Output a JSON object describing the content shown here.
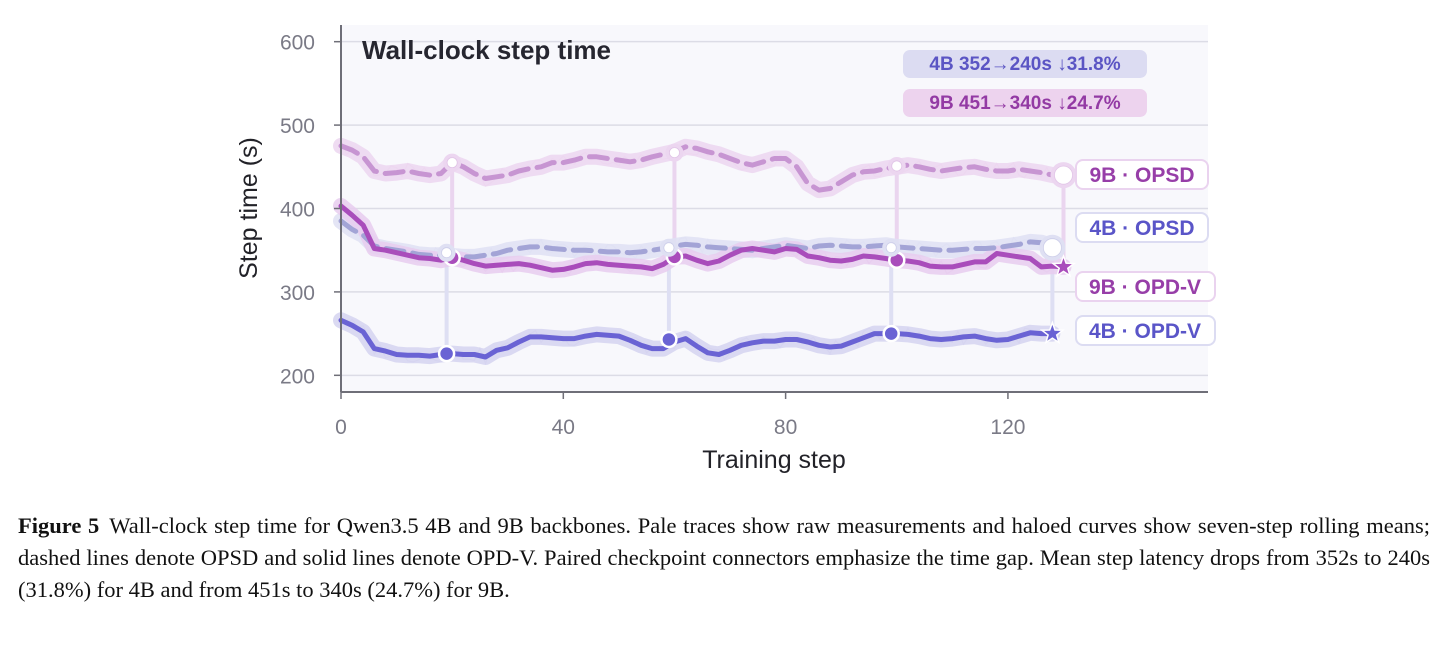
{
  "chart_data": {
    "type": "line",
    "title": "Wall-clock step time",
    "xlabel": "Training step",
    "ylabel": "Step time (s)",
    "xlim": [
      0,
      156
    ],
    "ylim": [
      180,
      620
    ],
    "xticks": [
      0,
      40,
      80,
      120
    ],
    "yticks": [
      200,
      300,
      400,
      500,
      600
    ],
    "grid": "horizontal",
    "annotations": [
      {
        "text": "4B  352→240s  ↓31.8%",
        "color": "#5b55c4",
        "bg": "#dcdcf2"
      },
      {
        "text": "9B  451→340s  ↓24.7%",
        "color": "#933aa4",
        "bg": "#edd3ee"
      }
    ],
    "series": [
      {
        "name": "9B · OPSD",
        "style": "dashed",
        "color": "#c795d2",
        "halo": "#ecd6f0",
        "marker": "open-circle",
        "x": [
          0,
          2,
          4,
          6,
          8,
          10,
          12,
          14,
          16,
          18,
          20,
          22,
          24,
          26,
          28,
          30,
          32,
          34,
          36,
          38,
          40,
          42,
          44,
          46,
          48,
          50,
          52,
          54,
          56,
          58,
          60,
          62,
          64,
          66,
          68,
          70,
          72,
          74,
          76,
          78,
          80,
          82,
          84,
          86,
          88,
          90,
          92,
          94,
          96,
          98,
          100,
          102,
          104,
          106,
          108,
          110,
          112,
          114,
          116,
          118,
          120,
          122,
          124,
          126,
          128,
          130
        ],
        "values": [
          475,
          470,
          462,
          445,
          442,
          443,
          445,
          442,
          440,
          442,
          455,
          450,
          442,
          436,
          438,
          440,
          445,
          448,
          450,
          455,
          455,
          458,
          462,
          462,
          460,
          458,
          456,
          458,
          462,
          465,
          468,
          474,
          472,
          468,
          465,
          460,
          455,
          452,
          456,
          460,
          460,
          450,
          430,
          422,
          424,
          432,
          440,
          444,
          445,
          448,
          450,
          452,
          450,
          447,
          445,
          447,
          449,
          450,
          447,
          445,
          445,
          447,
          445,
          443,
          440,
          440
        ]
      },
      {
        "name": "4B · OPSD",
        "style": "dashed",
        "color": "#a3a4d6",
        "halo": "#dfe0f3",
        "marker": "open-circle",
        "x": [
          0,
          2,
          4,
          6,
          8,
          10,
          12,
          14,
          16,
          18,
          20,
          22,
          24,
          26,
          28,
          30,
          32,
          34,
          36,
          38,
          40,
          42,
          44,
          46,
          48,
          50,
          52,
          54,
          56,
          58,
          60,
          62,
          64,
          66,
          68,
          70,
          72,
          74,
          76,
          78,
          80,
          82,
          84,
          86,
          88,
          90,
          92,
          94,
          96,
          98,
          100,
          102,
          104,
          106,
          108,
          110,
          112,
          114,
          116,
          118,
          120,
          122,
          124,
          126,
          128
        ],
        "values": [
          385,
          375,
          368,
          355,
          352,
          350,
          348,
          345,
          344,
          344,
          343,
          342,
          342,
          344,
          346,
          350,
          352,
          354,
          354,
          352,
          351,
          350,
          350,
          349,
          348,
          348,
          347,
          348,
          350,
          352,
          355,
          357,
          356,
          354,
          353,
          352,
          351,
          350,
          352,
          354,
          356,
          354,
          352,
          355,
          356,
          355,
          354,
          354,
          355,
          356,
          354,
          353,
          352,
          351,
          350,
          350,
          351,
          352,
          352,
          353,
          355,
          357,
          360,
          359,
          355
        ]
      },
      {
        "name": "9B · OPD-V",
        "style": "solid",
        "color": "#a94dbb",
        "halo": "#e8cdee",
        "marker": "filled-circle",
        "x": [
          0,
          2,
          4,
          6,
          8,
          10,
          12,
          14,
          16,
          18,
          20,
          22,
          24,
          26,
          28,
          30,
          32,
          34,
          36,
          38,
          40,
          42,
          44,
          46,
          48,
          50,
          52,
          54,
          56,
          58,
          60,
          62,
          64,
          66,
          68,
          70,
          72,
          74,
          76,
          78,
          80,
          82,
          84,
          86,
          88,
          90,
          92,
          94,
          96,
          98,
          100,
          102,
          104,
          106,
          108,
          110,
          112,
          114,
          116,
          118,
          120,
          122,
          124,
          126,
          128,
          130
        ],
        "values": [
          403,
          392,
          380,
          352,
          350,
          347,
          344,
          341,
          340,
          338,
          341,
          338,
          334,
          331,
          332,
          333,
          334,
          332,
          329,
          326,
          327,
          330,
          334,
          335,
          333,
          332,
          331,
          330,
          328,
          333,
          342,
          343,
          338,
          334,
          337,
          344,
          350,
          352,
          350,
          348,
          352,
          351,
          343,
          341,
          338,
          337,
          339,
          343,
          342,
          340,
          338,
          337,
          335,
          331,
          330,
          330,
          333,
          336,
          336,
          346,
          344,
          342,
          340,
          330,
          331,
          330
        ]
      },
      {
        "name": "4B · OPD-V",
        "style": "solid",
        "color": "#6a63d4",
        "halo": "#d5d4f0",
        "marker": "filled-circle",
        "x": [
          0,
          2,
          4,
          6,
          8,
          10,
          12,
          14,
          16,
          18,
          20,
          22,
          24,
          26,
          28,
          30,
          32,
          34,
          36,
          38,
          40,
          42,
          44,
          46,
          48,
          50,
          52,
          54,
          56,
          58,
          60,
          62,
          64,
          66,
          68,
          70,
          72,
          74,
          76,
          78,
          80,
          82,
          84,
          86,
          88,
          90,
          92,
          94,
          96,
          98,
          100,
          102,
          104,
          106,
          108,
          110,
          112,
          114,
          116,
          118,
          120,
          122,
          124,
          126,
          128
        ],
        "values": [
          266,
          260,
          252,
          232,
          229,
          225,
          224,
          224,
          223,
          225,
          226,
          225,
          225,
          222,
          230,
          233,
          240,
          246,
          246,
          245,
          244,
          244,
          247,
          249,
          248,
          247,
          242,
          236,
          232,
          232,
          240,
          244,
          235,
          227,
          225,
          230,
          236,
          239,
          241,
          241,
          243,
          243,
          240,
          236,
          234,
          235,
          240,
          245,
          250,
          250,
          250,
          249,
          247,
          244,
          243,
          244,
          246,
          247,
          244,
          242,
          243,
          247,
          251,
          250,
          250
        ]
      }
    ],
    "checkpoints": [
      {
        "x": 20,
        "top": 455,
        "bottom": 341,
        "pair": "9B"
      },
      {
        "x": 60,
        "top": 467,
        "bottom": 342,
        "pair": "9B"
      },
      {
        "x": 100,
        "top": 451,
        "bottom": 338,
        "pair": "9B"
      },
      {
        "x": 130,
        "top": 440,
        "bottom": 330,
        "pair": "9B"
      },
      {
        "x": 19,
        "top": 347,
        "bottom": 226,
        "pair": "4B"
      },
      {
        "x": 59,
        "top": 353,
        "bottom": 243,
        "pair": "4B"
      },
      {
        "x": 99,
        "top": 353,
        "bottom": 250,
        "pair": "4B"
      },
      {
        "x": 128,
        "top": 353,
        "bottom": 250,
        "pair": "4B"
      }
    ]
  },
  "caption": {
    "figure_number": "Figure 5",
    "text": "Wall-clock step time for Qwen3.5 4B and 9B backbones. Pale traces show raw measurements and haloed curves show seven-step rolling means; dashed lines denote OPSD and solid lines denote OPD-V. Paired checkpoint connectors emphasize the time gap. Mean step latency drops from 352s to 240s (31.8%) for 4B and from 451s to 340s (24.7%) for 9B."
  }
}
